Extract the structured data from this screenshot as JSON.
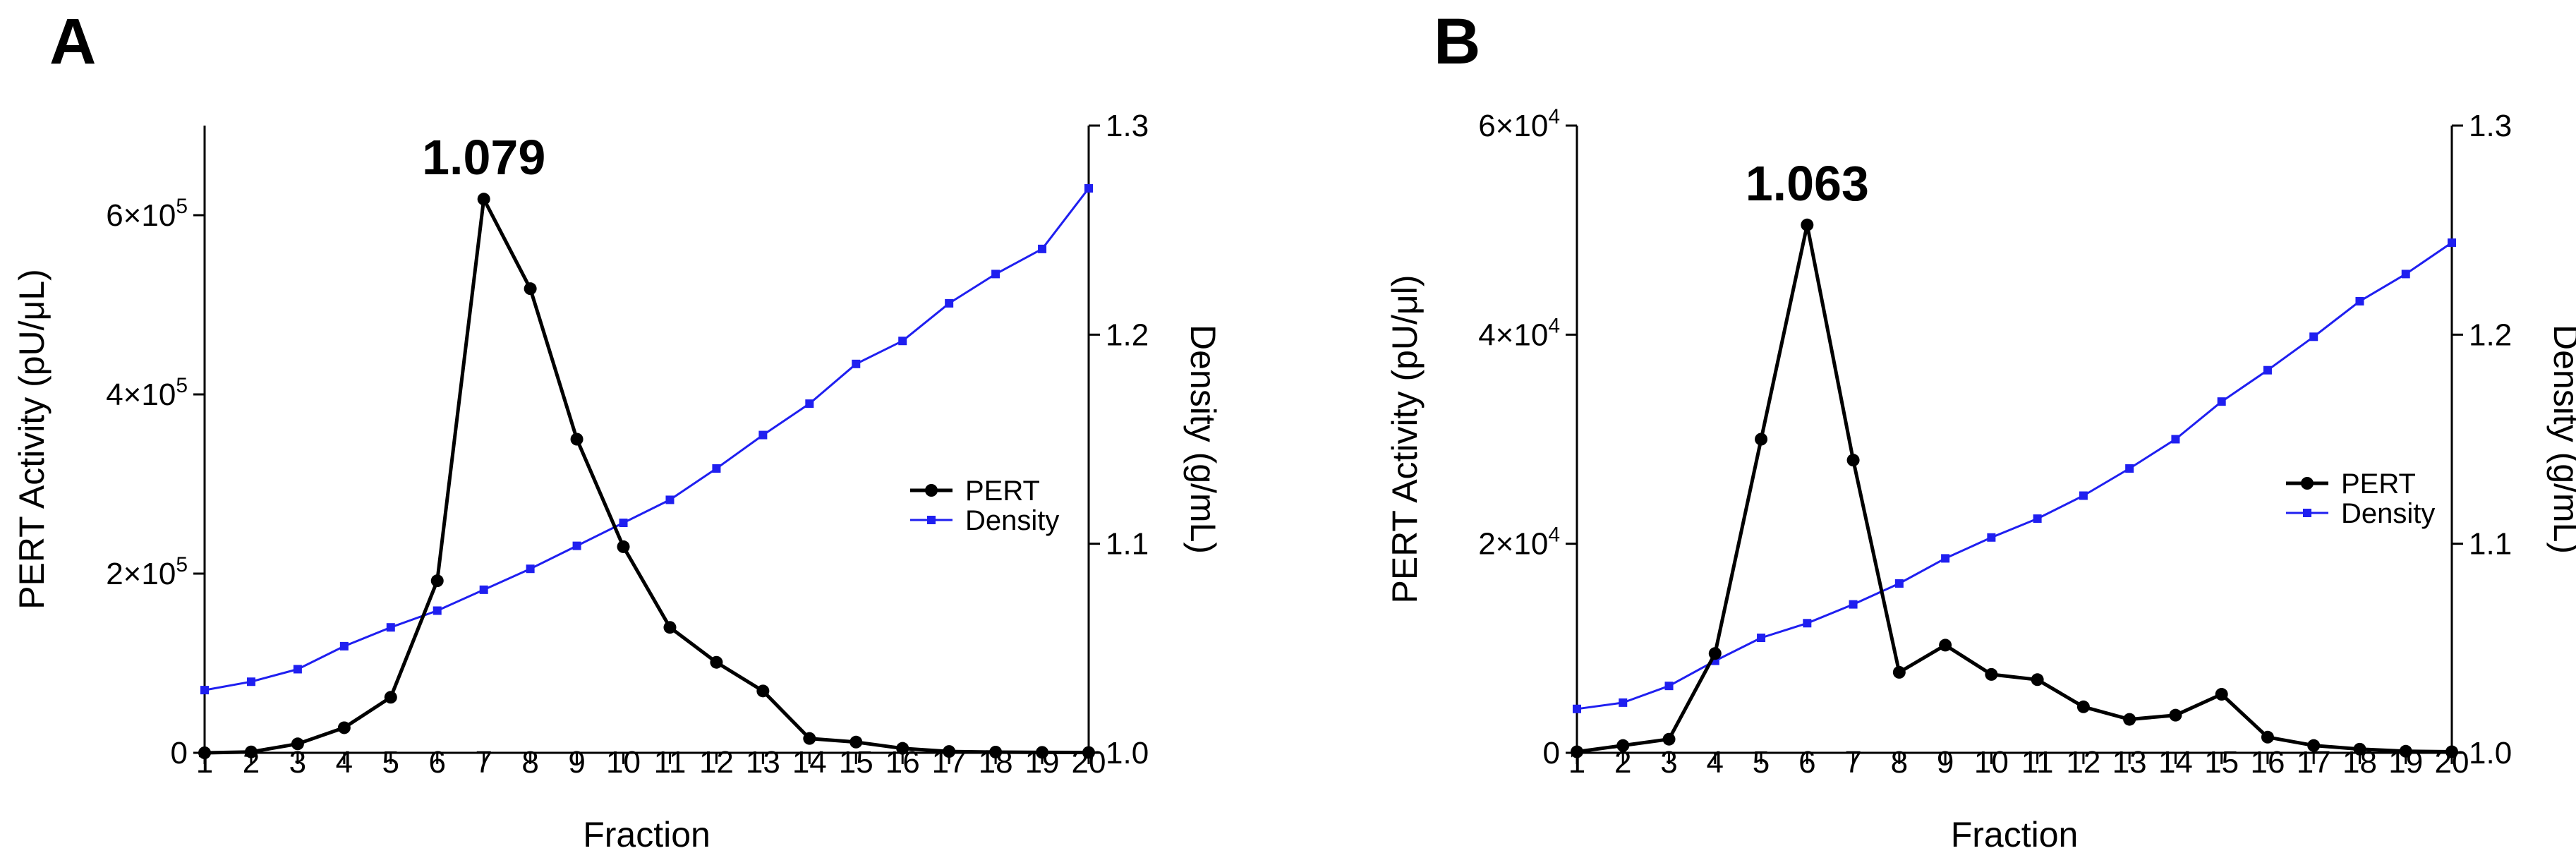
{
  "chart_data": [
    {
      "type": "line",
      "panel_label": "A",
      "xlabel": "Fraction",
      "ylabel_left": "PERT Activity (pU/μL)",
      "ylabel_right": "Density (g/mL)",
      "peak_annotation": {
        "text": "1.079",
        "fraction": 7
      },
      "x": [
        1,
        2,
        3,
        4,
        5,
        6,
        7,
        8,
        9,
        10,
        11,
        12,
        13,
        14,
        15,
        16,
        17,
        18,
        19,
        20
      ],
      "x_tick_labels": [
        "1",
        "2",
        "3",
        "4",
        "5",
        "6",
        "7",
        "8",
        "9",
        "10",
        "11",
        "12",
        "13",
        "14",
        "15",
        "16",
        "17",
        "18",
        "19",
        "20"
      ],
      "xlim": [
        1,
        20
      ],
      "ylim_left": [
        0,
        700000
      ],
      "ylim_right": [
        1.0,
        1.3
      ],
      "left_ticks": [
        {
          "value": 0,
          "mantissa": "0",
          "exponent": ""
        },
        {
          "value": 200000,
          "mantissa": "2×10",
          "exponent": "5"
        },
        {
          "value": 400000,
          "mantissa": "4×10",
          "exponent": "5"
        },
        {
          "value": 600000,
          "mantissa": "6×10",
          "exponent": "5"
        }
      ],
      "right_ticks": [
        {
          "value": 1.0,
          "label": "1.0"
        },
        {
          "value": 1.1,
          "label": "1.1"
        },
        {
          "value": 1.2,
          "label": "1.2"
        },
        {
          "value": 1.3,
          "label": "1.3"
        }
      ],
      "series": [
        {
          "name": "PERT",
          "axis": "left",
          "color": "#000000",
          "marker": "circle",
          "values": [
            0,
            1000,
            10000,
            28000,
            62000,
            192000,
            618000,
            518000,
            350000,
            230000,
            140000,
            101000,
            69000,
            16000,
            12000,
            5000,
            1500,
            800,
            500,
            300
          ]
        },
        {
          "name": "Density",
          "axis": "right",
          "color": "#1f1ff0",
          "marker": "square",
          "values": [
            1.03,
            1.034,
            1.04,
            1.051,
            1.06,
            1.068,
            1.078,
            1.088,
            1.099,
            1.11,
            1.121,
            1.136,
            1.152,
            1.167,
            1.186,
            1.197,
            1.215,
            1.229,
            1.241,
            1.27
          ]
        }
      ],
      "legend": {
        "position": "right-middle",
        "entries": [
          "PERT",
          "Density"
        ]
      }
    },
    {
      "type": "line",
      "panel_label": "B",
      "xlabel": "Fraction",
      "ylabel_left": "PERT Activity (pU/μl)",
      "ylabel_right": "Density (g/mL)",
      "peak_annotation": {
        "text": "1.063",
        "fraction": 6
      },
      "x": [
        1,
        2,
        3,
        4,
        5,
        6,
        7,
        8,
        9,
        10,
        11,
        12,
        13,
        14,
        15,
        16,
        17,
        18,
        19,
        20
      ],
      "x_tick_labels": [
        "1",
        "2",
        "3",
        "4",
        "5",
        "6",
        "7",
        "8",
        "9",
        "10",
        "11",
        "12",
        "13",
        "14",
        "15",
        "16",
        "17",
        "18",
        "19",
        "20"
      ],
      "xlim": [
        1,
        20
      ],
      "ylim_left": [
        0,
        60000
      ],
      "ylim_right": [
        1.0,
        1.3
      ],
      "left_ticks": [
        {
          "value": 0,
          "mantissa": "0",
          "exponent": ""
        },
        {
          "value": 20000,
          "mantissa": "2×10",
          "exponent": "4"
        },
        {
          "value": 40000,
          "mantissa": "4×10",
          "exponent": "4"
        },
        {
          "value": 60000,
          "mantissa": "6×10",
          "exponent": "4"
        }
      ],
      "right_ticks": [
        {
          "value": 1.0,
          "label": "1.0"
        },
        {
          "value": 1.1,
          "label": "1.1"
        },
        {
          "value": 1.2,
          "label": "1.2"
        },
        {
          "value": 1.3,
          "label": "1.3"
        }
      ],
      "series": [
        {
          "name": "PERT",
          "axis": "left",
          "color": "#000000",
          "marker": "circle",
          "values": [
            100,
            700,
            1300,
            9500,
            30000,
            50500,
            28000,
            7700,
            10300,
            7500,
            7000,
            4400,
            3200,
            3600,
            5600,
            1500,
            700,
            350,
            150,
            100
          ]
        },
        {
          "name": "Density",
          "axis": "right",
          "color": "#1f1ff0",
          "marker": "square",
          "values": [
            1.021,
            1.024,
            1.032,
            1.044,
            1.055,
            1.062,
            1.071,
            1.081,
            1.093,
            1.103,
            1.112,
            1.123,
            1.136,
            1.15,
            1.168,
            1.183,
            1.199,
            1.216,
            1.229,
            1.244
          ]
        }
      ],
      "legend": {
        "position": "right-middle",
        "entries": [
          "PERT",
          "Density"
        ]
      }
    }
  ]
}
